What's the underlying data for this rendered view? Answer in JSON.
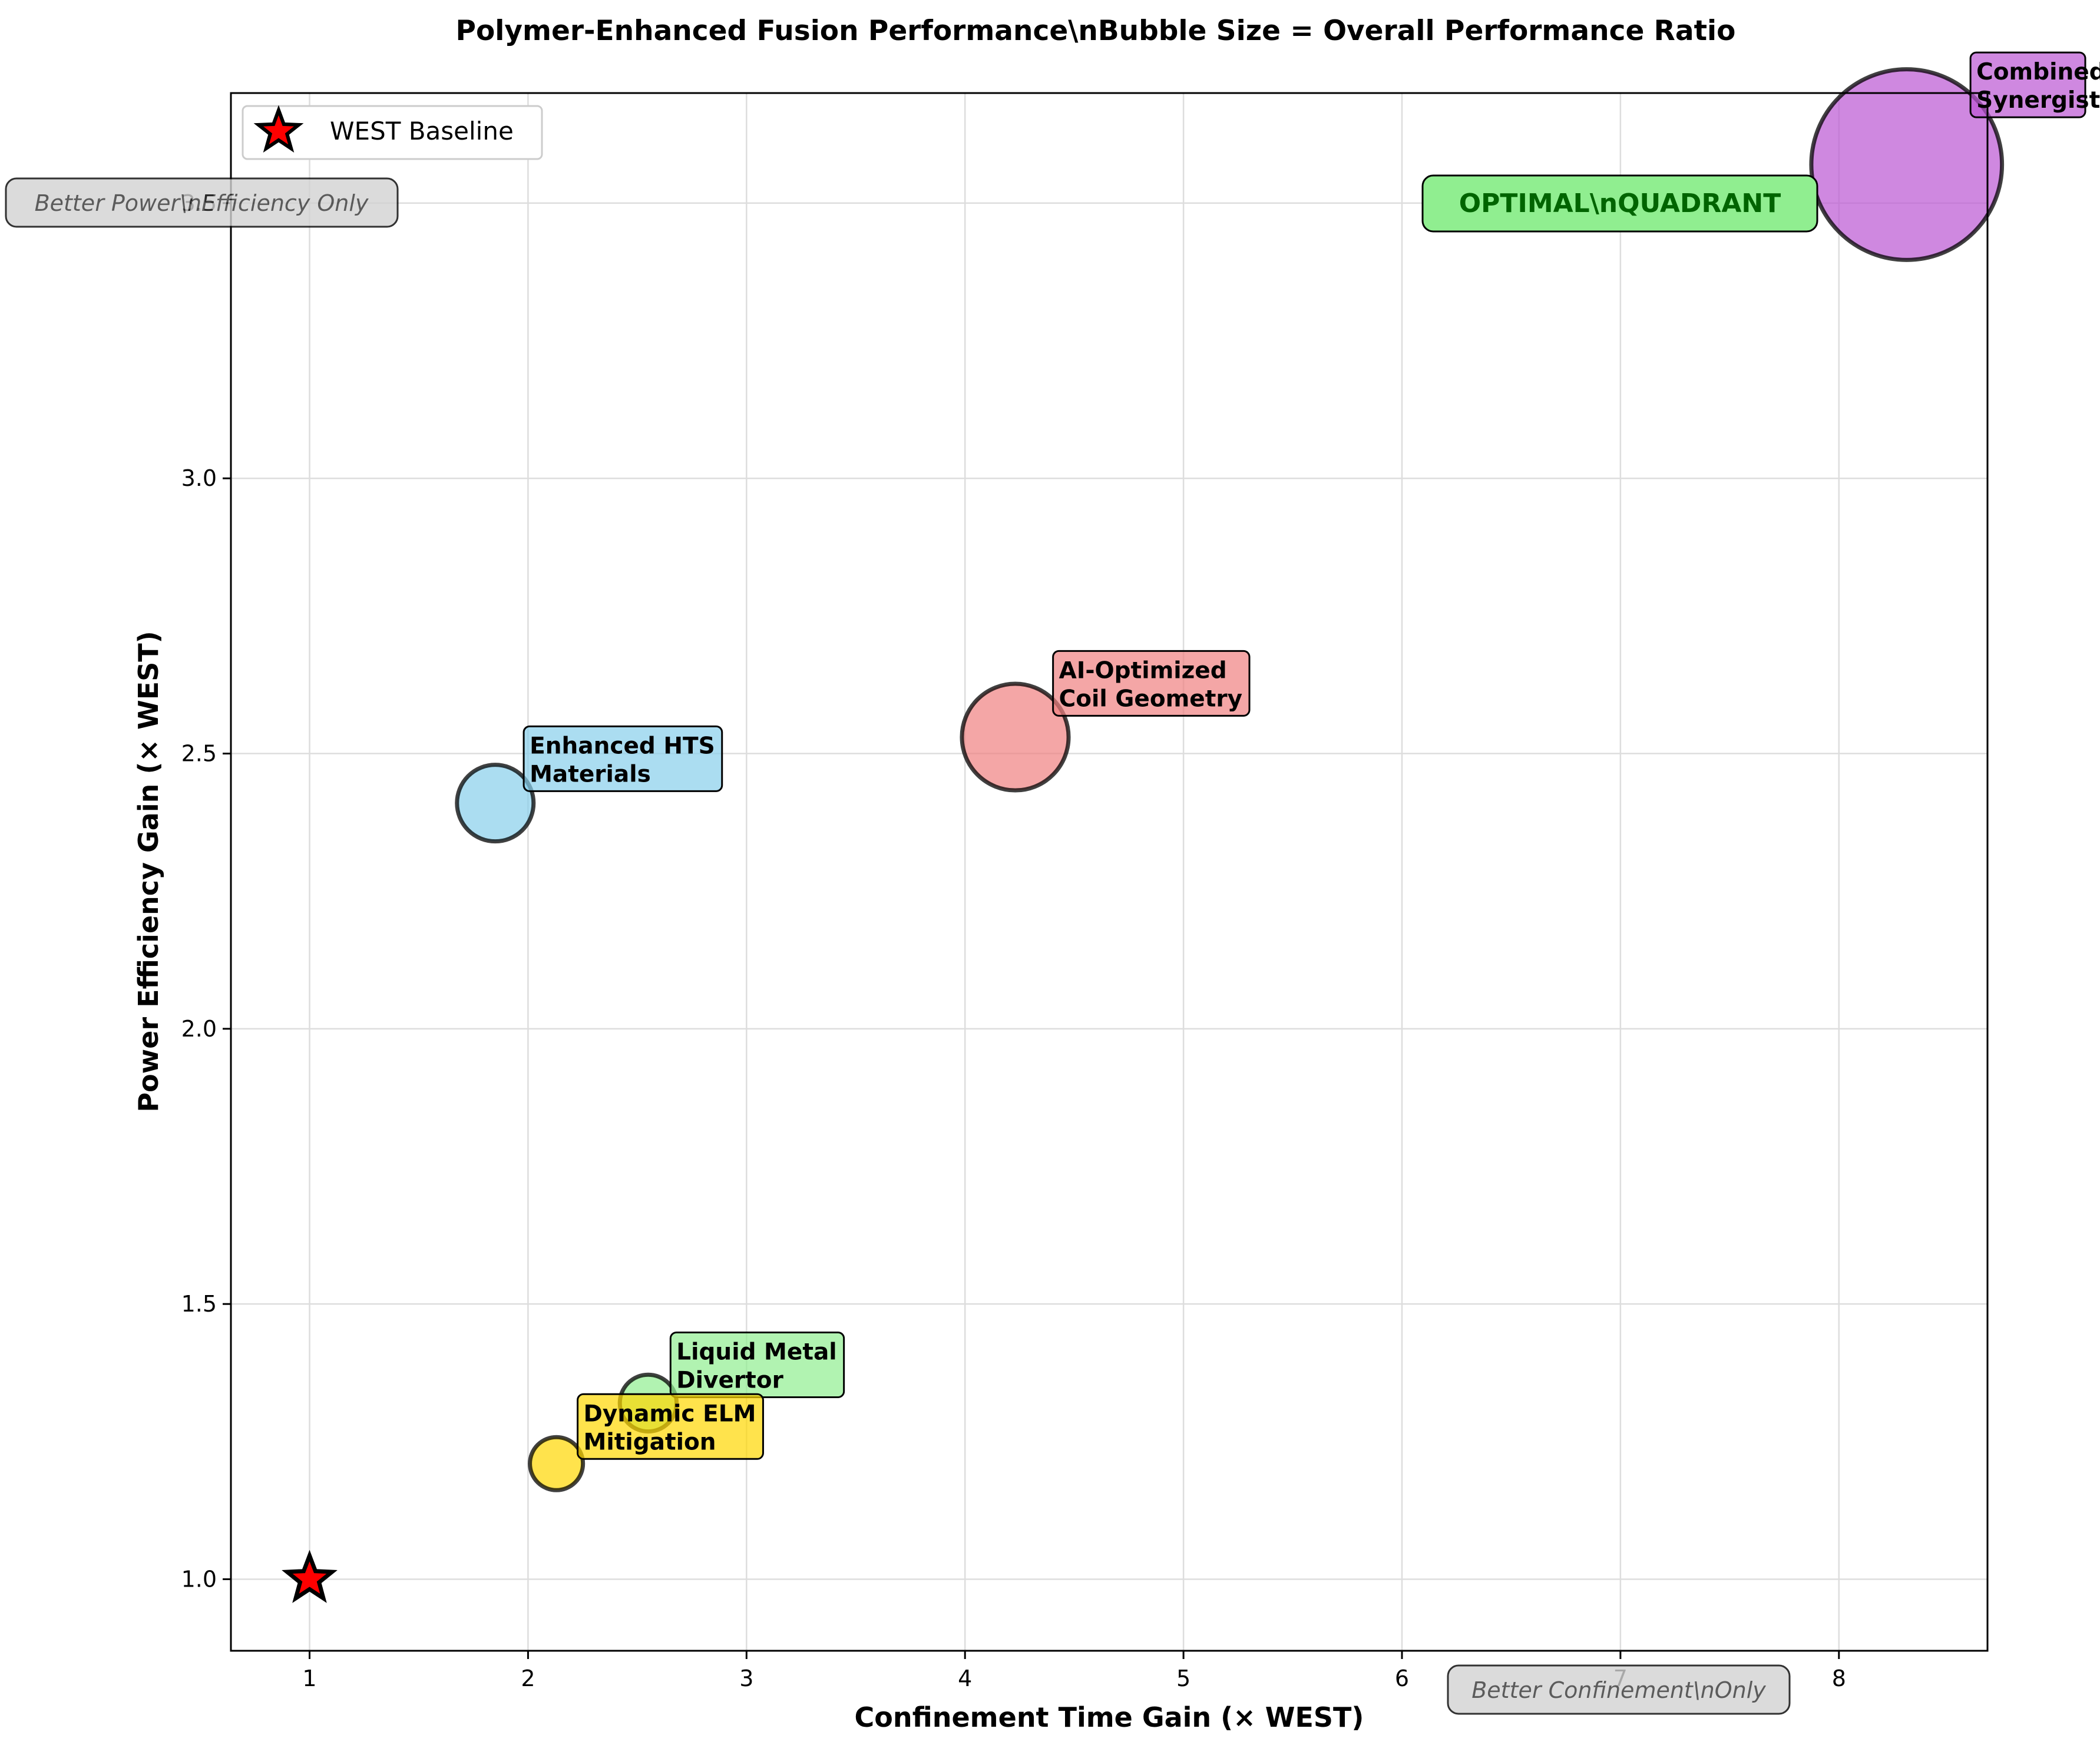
{
  "chart_data": {
    "type": "scatter",
    "title": "Polymer-Enhanced Fusion Performance\\nBubble Size = Overall Performance Ratio",
    "xlabel": "Confinement Time Gain (× WEST)",
    "ylabel": "Power Efficiency Gain (× WEST)",
    "xlim": [
      0.64,
      8.68
    ],
    "ylim": [
      0.87,
      3.7
    ],
    "x_ticks": [
      1,
      2,
      3,
      4,
      5,
      6,
      7,
      8
    ],
    "x_tick_labels": [
      "1",
      "2",
      "3",
      "4",
      "5",
      "6",
      "7",
      "8"
    ],
    "y_ticks": [
      1.0,
      1.5,
      2.0,
      2.5,
      3.0,
      3.5
    ],
    "y_tick_labels": [
      "1.0",
      "1.5",
      "2.0",
      "2.5",
      "3.0",
      "3.5"
    ],
    "grid": true,
    "legend": {
      "position": "top-left",
      "entries": [
        "WEST Baseline"
      ]
    },
    "baseline": {
      "name": "WEST Baseline",
      "x": 1.0,
      "y": 1.0,
      "color": "#ff0000",
      "marker": "star"
    },
    "points": [
      {
        "label_line1": "Enhanced HTS",
        "label_line2": "Materials",
        "x": 1.85,
        "y": 2.41,
        "ratio": 1.0,
        "color": "#87ceeb"
      },
      {
        "label_line1": "AI-Optimized",
        "label_line2": "Coil Geometry",
        "x": 4.23,
        "y": 2.53,
        "ratio": 1.94,
        "color": "#f08080"
      },
      {
        "label_line1": "Liquid Metal",
        "label_line2": "Divertor",
        "x": 2.55,
        "y": 1.32,
        "ratio": 0.55,
        "color": "#90ee90"
      },
      {
        "label_line1": "Dynamic ELM",
        "label_line2": "Mitigation",
        "x": 2.13,
        "y": 1.21,
        "ratio": 0.48,
        "color": "#ffd700"
      },
      {
        "label_line1": "Combined",
        "label_line2": "Synergistic",
        "x": 8.31,
        "y": 3.57,
        "ratio": 6.2,
        "color": "#ba55d3"
      }
    ],
    "annotations": [
      {
        "text": "OPTIMAL\\nQUADRANT",
        "color": "#006400",
        "bg": "#90ee90"
      },
      {
        "text": "Better Power\\nEfficiency Only",
        "color": "#333333",
        "bg": "#d3d3d3"
      },
      {
        "text": "Better Confinement\\nOnly",
        "color": "#333333",
        "bg": "#d3d3d3"
      }
    ]
  }
}
